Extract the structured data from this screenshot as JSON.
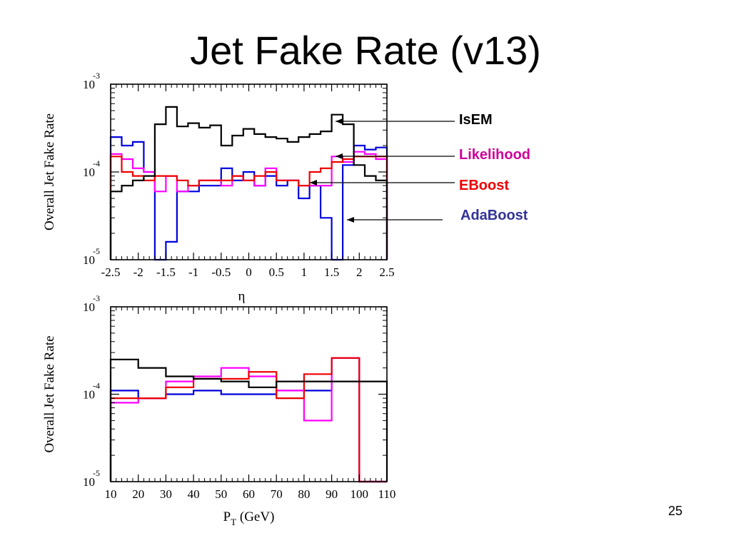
{
  "slide": {
    "title": "Jet Fake Rate (v13)",
    "page_number": "25"
  },
  "legend": [
    {
      "label": "IsEM",
      "color": "#000000"
    },
    {
      "label": "Likelihood",
      "color": "#cc0099"
    },
    {
      "label": "EBoost",
      "color": "#ee0000"
    },
    {
      "label": "AdaBoost",
      "color": "#333399"
    }
  ],
  "colors": {
    "IsEM": "#000000",
    "Likelihood": "#ff00ff",
    "EBoost": "#ee0000",
    "AdaBoost": "#0000dd"
  },
  "chart_data": [
    {
      "type": "line",
      "style": "step-histogram",
      "ylabel": "Overall Jet Fake Rate",
      "xlabel": "η",
      "ylog": true,
      "ylim": [
        1e-05,
        0.001
      ],
      "xlim": [
        -2.5,
        2.5
      ],
      "xticks": [
        -2.5,
        -2,
        -1.5,
        -1,
        -0.5,
        0,
        0.5,
        1,
        1.5,
        2,
        2.5
      ],
      "xtick_labels": [
        "-2.5",
        "-2",
        "-1.5",
        "-1",
        "-0.5",
        "0",
        "0.5",
        "1",
        "1.5",
        "2",
        "2.5"
      ],
      "ytick_labels": [
        {
          "base": "10",
          "exp": "-3"
        },
        {
          "base": "10",
          "exp": "-4"
        },
        {
          "base": "10",
          "exp": "-5"
        }
      ],
      "bin_edges": [
        -2.5,
        -2.3,
        -2.1,
        -1.9,
        -1.7,
        -1.5,
        -1.3,
        -1.1,
        -0.9,
        -0.7,
        -0.5,
        -0.3,
        -0.1,
        0.1,
        0.3,
        0.5,
        0.7,
        0.9,
        1.1,
        1.3,
        1.5,
        1.7,
        1.9,
        2.1,
        2.3,
        2.5
      ],
      "series": [
        {
          "name": "IsEM",
          "values": [
            6e-05,
            7e-05,
            8e-05,
            9e-05,
            0.00035,
            0.00055,
            0.00033,
            0.00036,
            0.00032,
            0.00034,
            0.0002,
            0.00026,
            0.00031,
            0.00027,
            0.00025,
            0.00024,
            0.00022,
            0.00025,
            0.00027,
            0.00029,
            0.00045,
            0.00035,
            0.00012,
            9e-05,
            8e-05
          ]
        },
        {
          "name": "Likelihood",
          "values": [
            0.00016,
            0.00014,
            0.00011,
            0.0001,
            6e-05,
            9e-05,
            6e-05,
            7e-05,
            8e-05,
            8e-05,
            7e-05,
            9e-05,
            8e-05,
            7e-05,
            0.00011,
            8e-05,
            8e-05,
            7e-05,
            7e-05,
            7e-05,
            0.00015,
            0.00013,
            0.00017,
            0.00016,
            0.00014
          ]
        },
        {
          "name": "EBoost",
          "values": [
            0.00015,
            0.0001,
            9e-05,
            8e-05,
            9e-05,
            9e-05,
            8e-05,
            7e-05,
            8e-05,
            8e-05,
            8e-05,
            9e-05,
            8e-05,
            9e-05,
            0.0001,
            8e-05,
            8e-05,
            7e-05,
            0.0001,
            0.00011,
            0.00013,
            0.00014,
            0.00015,
            0.00015,
            0.00015
          ]
        },
        {
          "name": "AdaBoost",
          "values": [
            0.00025,
            0.0002,
            0.00022,
            0.0001,
            1e-05,
            1.6e-05,
            6e-05,
            6e-05,
            7e-05,
            7e-05,
            0.00011,
            8e-05,
            0.0001,
            7e-05,
            9e-05,
            7e-05,
            8e-05,
            5e-05,
            7e-05,
            3e-05,
            1e-05,
            0.00012,
            0.0002,
            0.00018,
            0.00019
          ]
        }
      ]
    },
    {
      "type": "line",
      "style": "step-histogram",
      "ylabel": "Overall Jet Fake Rate",
      "xlabel_base": "P",
      "xlabel_sub": "T",
      "xlabel_unit": " (GeV)",
      "ylog": true,
      "ylim": [
        1e-05,
        0.001
      ],
      "xlim": [
        10,
        110
      ],
      "xticks": [
        10,
        20,
        30,
        40,
        50,
        60,
        70,
        80,
        90,
        100,
        110
      ],
      "xtick_labels": [
        "10",
        "20",
        "30",
        "40",
        "50",
        "60",
        "70",
        "80",
        "90",
        "100",
        "110"
      ],
      "ytick_labels": [
        {
          "base": "10",
          "exp": "-3"
        },
        {
          "base": "10",
          "exp": "-4"
        },
        {
          "base": "10",
          "exp": "-5"
        }
      ],
      "bin_edges": [
        10,
        20,
        30,
        40,
        50,
        60,
        70,
        80,
        90,
        100,
        110
      ],
      "series": [
        {
          "name": "IsEM",
          "values": [
            0.00025,
            0.0002,
            0.00016,
            0.00015,
            0.00014,
            0.00012,
            0.00014,
            0.00014,
            0.00014,
            0.00014
          ]
        },
        {
          "name": "Likelihood",
          "values": [
            8e-05,
            9e-05,
            0.00014,
            0.00016,
            0.0002,
            0.00016,
            0.00011,
            5e-05,
            0.00026,
            1e-05
          ]
        },
        {
          "name": "EBoost",
          "values": [
            9e-05,
            9e-05,
            0.00012,
            0.00015,
            0.00015,
            0.00018,
            9e-05,
            0.00017,
            0.00026,
            1e-05
          ]
        },
        {
          "name": "AdaBoost",
          "values": [
            0.00011,
            9e-05,
            0.0001,
            0.00011,
            0.0001,
            0.0001,
            0.00011,
            0.00011,
            0.00026,
            1e-05
          ]
        }
      ]
    }
  ]
}
